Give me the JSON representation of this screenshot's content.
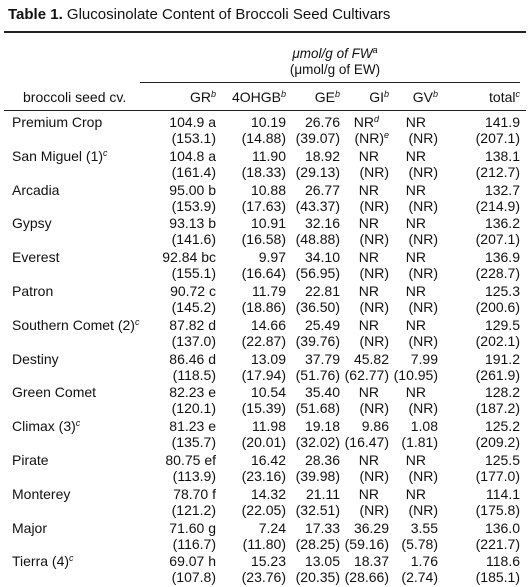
{
  "title": {
    "label": "Table 1.",
    "text": "Glucosinolate Content of Broccoli Seed Cultivars"
  },
  "units": {
    "line1": "μmol/g of FW",
    "line1_sup": "a",
    "line2": "(μmol/g of EW)"
  },
  "headers": {
    "cultivar": "broccoli seed cv.",
    "columns": [
      {
        "label": "GR",
        "sup": "b"
      },
      {
        "label": "4OHGB",
        "sup": "b"
      },
      {
        "label": "GE",
        "sup": "b"
      },
      {
        "label": "GI",
        "sup": "b"
      },
      {
        "label": "GV",
        "sup": "b"
      },
      {
        "label": "total",
        "sup": "c"
      }
    ]
  },
  "rows": [
    {
      "cv": "Premium Crop",
      "sup": "",
      "vals": [
        "104.9 a",
        "10.19",
        "26.76",
        "NR",
        "NR",
        "141.9"
      ],
      "vals_sup": [
        "",
        "",
        "",
        "d",
        "",
        ""
      ],
      "ew": [
        "(153.1)",
        "(14.88)",
        "(39.07)",
        "(NR)",
        "(NR)",
        "(207.1)"
      ],
      "ew_sup": [
        "",
        "",
        "",
        "e",
        "",
        ""
      ]
    },
    {
      "cv": "San Miguel (1)",
      "sup": "c",
      "vals": [
        "104.8 a",
        "11.90",
        "18.92",
        "NR",
        "NR",
        "138.1"
      ],
      "vals_sup": [
        "",
        "",
        "",
        "",
        "",
        ""
      ],
      "ew": [
        "(161.4)",
        "(18.33)",
        "(29.13)",
        "(NR)",
        "(NR)",
        "(212.7)"
      ],
      "ew_sup": [
        "",
        "",
        "",
        "",
        "",
        ""
      ]
    },
    {
      "cv": "Arcadia",
      "sup": "",
      "vals": [
        "95.00 b",
        "10.88",
        "26.77",
        "NR",
        "NR",
        "132.7"
      ],
      "vals_sup": [
        "",
        "",
        "",
        "",
        "",
        ""
      ],
      "ew": [
        "(153.9)",
        "(17.63)",
        "(43.37)",
        "(NR)",
        "(NR)",
        "(214.9)"
      ],
      "ew_sup": [
        "",
        "",
        "",
        "",
        "",
        ""
      ]
    },
    {
      "cv": "Gypsy",
      "sup": "",
      "vals": [
        "93.13 b",
        "10.91",
        "32.16",
        "NR",
        "NR",
        "136.2"
      ],
      "vals_sup": [
        "",
        "",
        "",
        "",
        "",
        ""
      ],
      "ew": [
        "(141.6)",
        "(16.58)",
        "(48.88)",
        "(NR)",
        "(NR)",
        "(207.1)"
      ],
      "ew_sup": [
        "",
        "",
        "",
        "",
        "",
        ""
      ]
    },
    {
      "cv": "Everest",
      "sup": "",
      "vals": [
        "92.84 bc",
        "9.97",
        "34.10",
        "NR",
        "NR",
        "136.9"
      ],
      "vals_sup": [
        "",
        "",
        "",
        "",
        "",
        ""
      ],
      "ew": [
        "(155.1)",
        "(16.64)",
        "(56.95)",
        "(NR)",
        "(NR)",
        "(228.7)"
      ],
      "ew_sup": [
        "",
        "",
        "",
        "",
        "",
        ""
      ]
    },
    {
      "cv": "Patron",
      "sup": "",
      "vals": [
        "90.72 c",
        "11.79",
        "22.81",
        "NR",
        "NR",
        "125.3"
      ],
      "vals_sup": [
        "",
        "",
        "",
        "",
        "",
        ""
      ],
      "ew": [
        "(145.2)",
        "(18.86)",
        "(36.50)",
        "(NR)",
        "(NR)",
        "(200.6)"
      ],
      "ew_sup": [
        "",
        "",
        "",
        "",
        "",
        ""
      ]
    },
    {
      "cv": "Southern Comet (2)",
      "sup": "c",
      "vals": [
        "87.82 d",
        "14.66",
        "25.49",
        "NR",
        "NR",
        "129.5"
      ],
      "vals_sup": [
        "",
        "",
        "",
        "",
        "",
        ""
      ],
      "ew": [
        "(137.0)",
        "(22.87)",
        "(39.76)",
        "(NR)",
        "(NR)",
        "(202.1)"
      ],
      "ew_sup": [
        "",
        "",
        "",
        "",
        "",
        ""
      ]
    },
    {
      "cv": "Destiny",
      "sup": "",
      "vals": [
        "86.46 d",
        "13.09",
        "37.79",
        "45.82",
        "7.99",
        "191.2"
      ],
      "vals_sup": [
        "",
        "",
        "",
        "",
        "",
        ""
      ],
      "ew": [
        "(118.5)",
        "(17.94)",
        "(51.76)",
        "(62.77)",
        "(10.95)",
        "(261.9)"
      ],
      "ew_sup": [
        "",
        "",
        "",
        "",
        "",
        ""
      ]
    },
    {
      "cv": "Green Comet",
      "sup": "",
      "vals": [
        "82.23 e",
        "10.54",
        "35.40",
        "NR",
        "NR",
        "128.2"
      ],
      "vals_sup": [
        "",
        "",
        "",
        "",
        "",
        ""
      ],
      "ew": [
        "(120.1)",
        "(15.39)",
        "(51.68)",
        "(NR)",
        "(NR)",
        "(187.2)"
      ],
      "ew_sup": [
        "",
        "",
        "",
        "",
        "",
        ""
      ]
    },
    {
      "cv": "Climax (3)",
      "sup": "c",
      "vals": [
        "81.23 e",
        "11.98",
        "19.18",
        "9.86",
        "1.08",
        "125.2"
      ],
      "vals_sup": [
        "",
        "",
        "",
        "",
        "",
        ""
      ],
      "ew": [
        "(135.7)",
        "(20.01)",
        "(32.02)",
        "(16.47)",
        "(1.81)",
        "(209.2)"
      ],
      "ew_sup": [
        "",
        "",
        "",
        "",
        "",
        ""
      ]
    },
    {
      "cv": "Pirate",
      "sup": "",
      "vals": [
        "80.75 ef",
        "16.42",
        "28.36",
        "NR",
        "NR",
        "125.5"
      ],
      "vals_sup": [
        "",
        "",
        "",
        "",
        "",
        ""
      ],
      "ew": [
        "(113.9)",
        "(23.16)",
        "(39.98)",
        "(NR)",
        "(NR)",
        "(177.0)"
      ],
      "ew_sup": [
        "",
        "",
        "",
        "",
        "",
        ""
      ]
    },
    {
      "cv": "Monterey",
      "sup": "",
      "vals": [
        "78.70 f",
        "14.32",
        "21.11",
        "NR",
        "NR",
        "114.1"
      ],
      "vals_sup": [
        "",
        "",
        "",
        "",
        "",
        ""
      ],
      "ew": [
        "(121.2)",
        "(22.05)",
        "(32.51)",
        "(NR)",
        "(NR)",
        "(175.8)"
      ],
      "ew_sup": [
        "",
        "",
        "",
        "",
        "",
        ""
      ]
    },
    {
      "cv": "Major",
      "sup": "",
      "vals": [
        "71.60 g",
        "7.24",
        "17.33",
        "36.29",
        "3.55",
        "136.0"
      ],
      "vals_sup": [
        "",
        "",
        "",
        "",
        "",
        ""
      ],
      "ew": [
        "(116.7)",
        "(11.80)",
        "(28.25)",
        "(59.16)",
        "(5.78)",
        "(221.7)"
      ],
      "ew_sup": [
        "",
        "",
        "",
        "",
        "",
        ""
      ]
    },
    {
      "cv": "Tierra (4)",
      "sup": "c",
      "vals": [
        "69.07 h",
        "15.23",
        "13.05",
        "18.37",
        "1.76",
        "118.6"
      ],
      "vals_sup": [
        "",
        "",
        "",
        "",
        "",
        ""
      ],
      "ew": [
        "(107.8)",
        "(23.76)",
        "(20.35)",
        "(28.66)",
        "(2.74)",
        "(185.1)"
      ],
      "ew_sup": [
        "",
        "",
        "",
        "",
        "",
        ""
      ]
    }
  ]
}
